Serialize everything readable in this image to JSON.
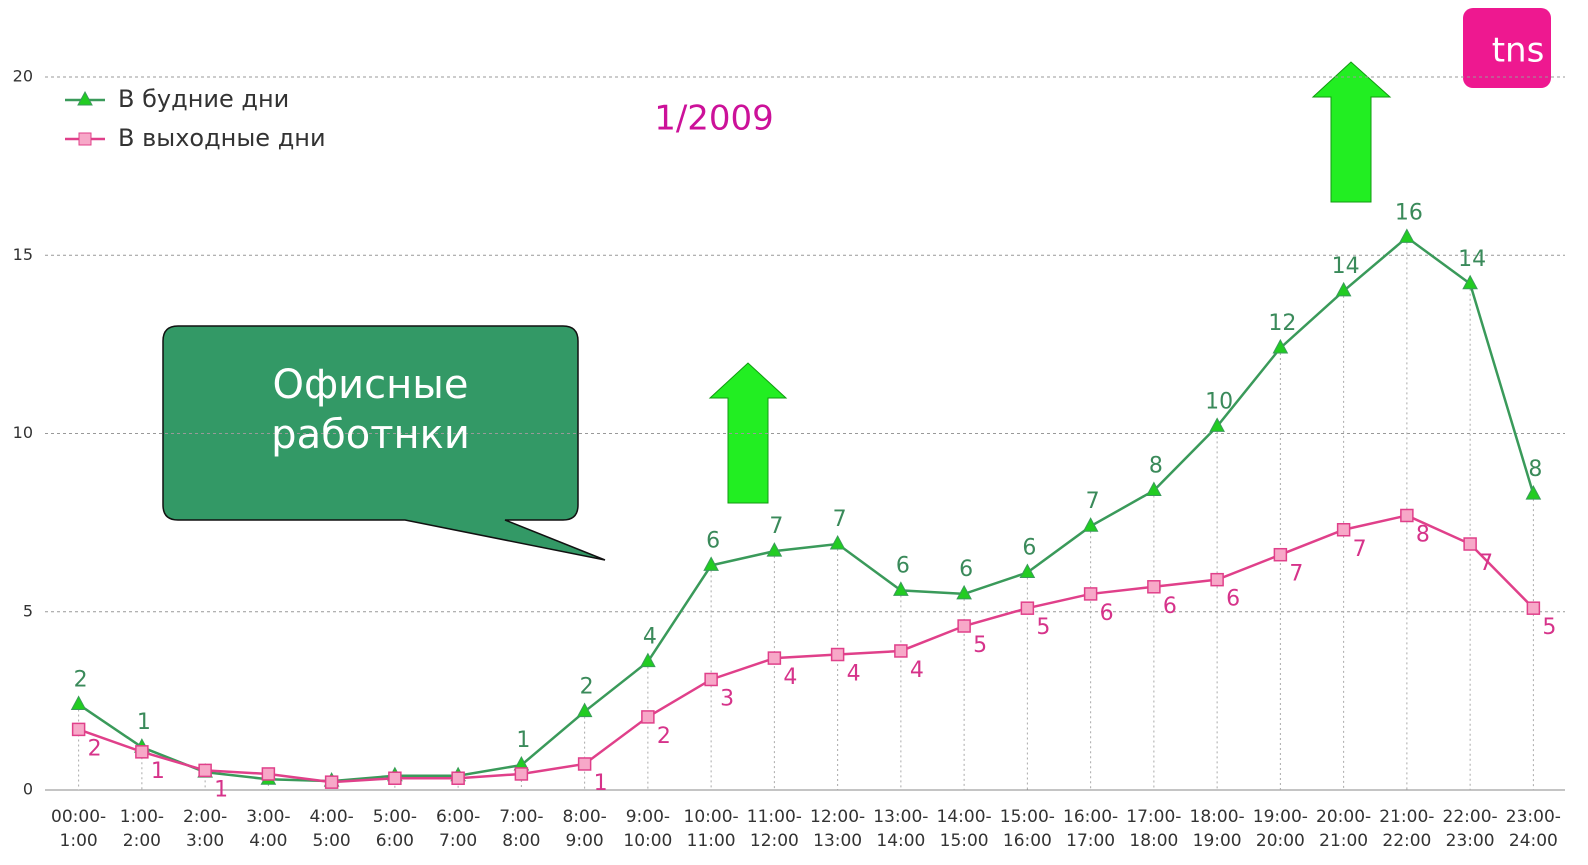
{
  "chart_data": {
    "type": "line",
    "annotation": "1/2009",
    "callout": "Офисные\nработнки",
    "logo": "tns",
    "categories": [
      "00:00-\n1:00",
      "1:00-\n2:00",
      "2:00-\n3:00",
      "3:00-\n4:00",
      "4:00-\n5:00",
      "5:00-\n6:00",
      "6:00-\n7:00",
      "7:00-\n8:00",
      "8:00-\n9:00",
      "9:00-\n10:00",
      "10:00-\n11:00",
      "11:00-\n12:00",
      "12:00-\n13:00",
      "13:00-\n14:00",
      "14:00-\n15:00",
      "15:00-\n16:00",
      "16:00-\n17:00",
      "17:00-\n18:00",
      "18:00-\n19:00",
      "19:00-\n20:00",
      "20:00-\n21:00",
      "21:00-\n22:00",
      "22:00-\n23:00",
      "23:00-\n24:00"
    ],
    "series": [
      {
        "name": "В будние дни",
        "color": "#3a9a5a",
        "marker_color": "#22cc22",
        "values": [
          2.4,
          1.2,
          0.5,
          0.3,
          0.25,
          0.4,
          0.4,
          0.7,
          2.2,
          3.6,
          6.3,
          6.7,
          6.9,
          5.6,
          5.5,
          6.1,
          7.4,
          8.4,
          10.2,
          12.4,
          14.0,
          15.5,
          14.2,
          8.3
        ],
        "value_labels": [
          "2",
          "1",
          null,
          null,
          null,
          null,
          null,
          "1",
          "2",
          "4",
          "6",
          "7",
          "7",
          "6",
          "6",
          "6",
          "7",
          "8",
          "10",
          "12",
          "14",
          "16",
          "14",
          "8"
        ]
      },
      {
        "name": "В выходные дни",
        "color": "#e0408a",
        "marker_color": "#f7a8c8",
        "values": [
          1.7,
          1.07,
          0.55,
          0.45,
          0.22,
          0.33,
          0.33,
          0.45,
          0.73,
          2.05,
          3.1,
          3.7,
          3.8,
          3.9,
          4.6,
          5.1,
          5.5,
          5.7,
          5.9,
          6.6,
          7.3,
          7.7,
          6.9,
          5.1
        ],
        "value_labels": [
          "2",
          "1",
          "1",
          null,
          null,
          null,
          null,
          null,
          "1",
          "2",
          "3",
          "4",
          "4",
          "4",
          "5",
          "5",
          "6",
          "6",
          "6",
          "7",
          "7",
          "8",
          "7",
          "5"
        ]
      }
    ],
    "ylim": [
      0,
      20
    ],
    "yticks": [
      0,
      5,
      10,
      15,
      20
    ],
    "grid": true,
    "legend": "upper left"
  }
}
